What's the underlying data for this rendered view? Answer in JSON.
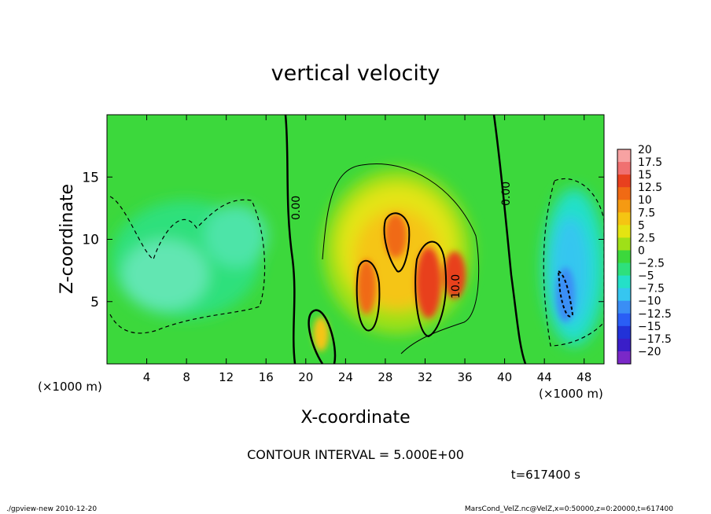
{
  "chart_data": {
    "type": "heatmap",
    "title": "vertical velocity",
    "xlabel": "X-coordinate",
    "ylabel": "Z-coordinate",
    "x_unit_left": "(×1000 m)",
    "x_unit_right": "(×1000 m)",
    "xlim": [
      0,
      50
    ],
    "ylim": [
      0,
      20
    ],
    "x_ticks": [
      "4",
      "8",
      "12",
      "16",
      "20",
      "24",
      "28",
      "32",
      "36",
      "40",
      "44",
      "48"
    ],
    "y_ticks": [
      "5",
      "10",
      "15"
    ],
    "colorbar": {
      "levels": [
        "20",
        "17.5",
        "15",
        "12.5",
        "10",
        "7.5",
        "5",
        "2.5",
        "0",
        "−2.5",
        "−5",
        "−7.5",
        "−10",
        "−12.5",
        "−15",
        "−17.5",
        "−20"
      ],
      "colors": [
        "#f7a2a2",
        "#f07070",
        "#e8401e",
        "#f06a14",
        "#f59a12",
        "#f5c512",
        "#e4e412",
        "#9fe018",
        "#3cd83c",
        "#2ee07c",
        "#24e0c8",
        "#36c6f0",
        "#3a8ef5",
        "#2a5ef5",
        "#2232d8",
        "#3a1ec8",
        "#7a28c8"
      ]
    },
    "contour_labels": [
      "0.00",
      "0.00",
      "10.0"
    ],
    "contour_interval": "CONTOUR INTERVAL = 5.000E+00",
    "time_label": "t=617400 s",
    "footer_left": "./gpview-new  2010-12-20",
    "footer_right": "MarsCond_VelZ.nc@VelZ,x=0:50000,z=0:20000,t=617400",
    "features": [
      {
        "x": 8,
        "z": 8,
        "value": -3
      },
      {
        "x": 21.5,
        "z": 2,
        "value": 9
      },
      {
        "x": 26.5,
        "z": 6,
        "value": 12
      },
      {
        "x": 29.5,
        "z": 10,
        "value": 12
      },
      {
        "x": 32.5,
        "z": 6,
        "value": 13
      },
      {
        "x": 35,
        "z": 7,
        "value": 11
      },
      {
        "x": 46,
        "z": 7,
        "value": -9
      }
    ]
  }
}
